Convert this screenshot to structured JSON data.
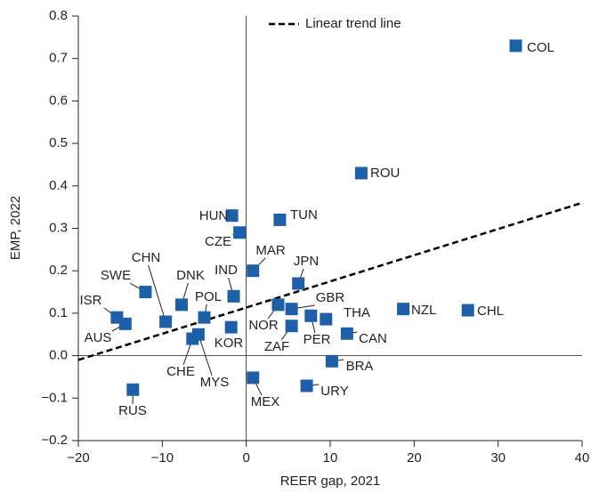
{
  "chart_data": {
    "type": "scatter",
    "x_label": "REER gap, 2021",
    "y_label": "EMP, 2022",
    "legend_label": "Linear trend line",
    "color": "#1f5fa8",
    "labels": [
      "COL",
      "ROU",
      "HUN",
      "TUN",
      "CZE",
      "MAR",
      "JPN",
      "IND",
      "SWE",
      "DNK",
      "POL",
      "CHN",
      "ISR",
      "AUS",
      "GBR",
      "NOR",
      "NZL",
      "CHL",
      "PER",
      "THA",
      "ZAF",
      "CAN",
      "KOR",
      "MYS",
      "CHE",
      "BRA",
      "MEX",
      "URY",
      "RUS"
    ],
    "x": [
      32.1,
      13.7,
      -1.7,
      4.0,
      -0.8,
      0.8,
      6.2,
      -1.5,
      -12.0,
      -7.7,
      -5.0,
      -9.6,
      -15.4,
      -14.4,
      5.4,
      3.8,
      18.7,
      26.4,
      7.7,
      9.5,
      5.4,
      12.0,
      -1.8,
      -5.7,
      -6.4,
      10.2,
      0.8,
      7.2,
      -13.5
    ],
    "y": [
      0.73,
      0.43,
      0.33,
      0.32,
      0.29,
      0.2,
      0.17,
      0.14,
      0.15,
      0.12,
      0.09,
      0.08,
      0.09,
      0.075,
      0.11,
      0.12,
      0.11,
      0.107,
      0.094,
      0.086,
      0.07,
      0.052,
      0.067,
      0.05,
      0.04,
      -0.013,
      -0.052,
      -0.071,
      -0.08
    ],
    "trend": {
      "x": [
        -20,
        40
      ],
      "y": [
        -0.01,
        0.36
      ]
    },
    "xlim": [
      -20,
      40
    ],
    "ylim": [
      -0.2,
      0.8
    ],
    "xticks": [
      {
        "value": -20,
        "label": "−20"
      },
      {
        "value": -10,
        "label": "−10"
      },
      0,
      10,
      20,
      30,
      40
    ],
    "yticks": [
      {
        "value": -0.2,
        "label": "−0.2"
      },
      {
        "value": -0.1,
        "label": "−0.1"
      },
      {
        "value": 0,
        "label": "0.0"
      },
      0.1,
      0.2,
      0.3,
      0.4,
      0.5,
      0.6,
      0.7,
      0.8
    ]
  }
}
